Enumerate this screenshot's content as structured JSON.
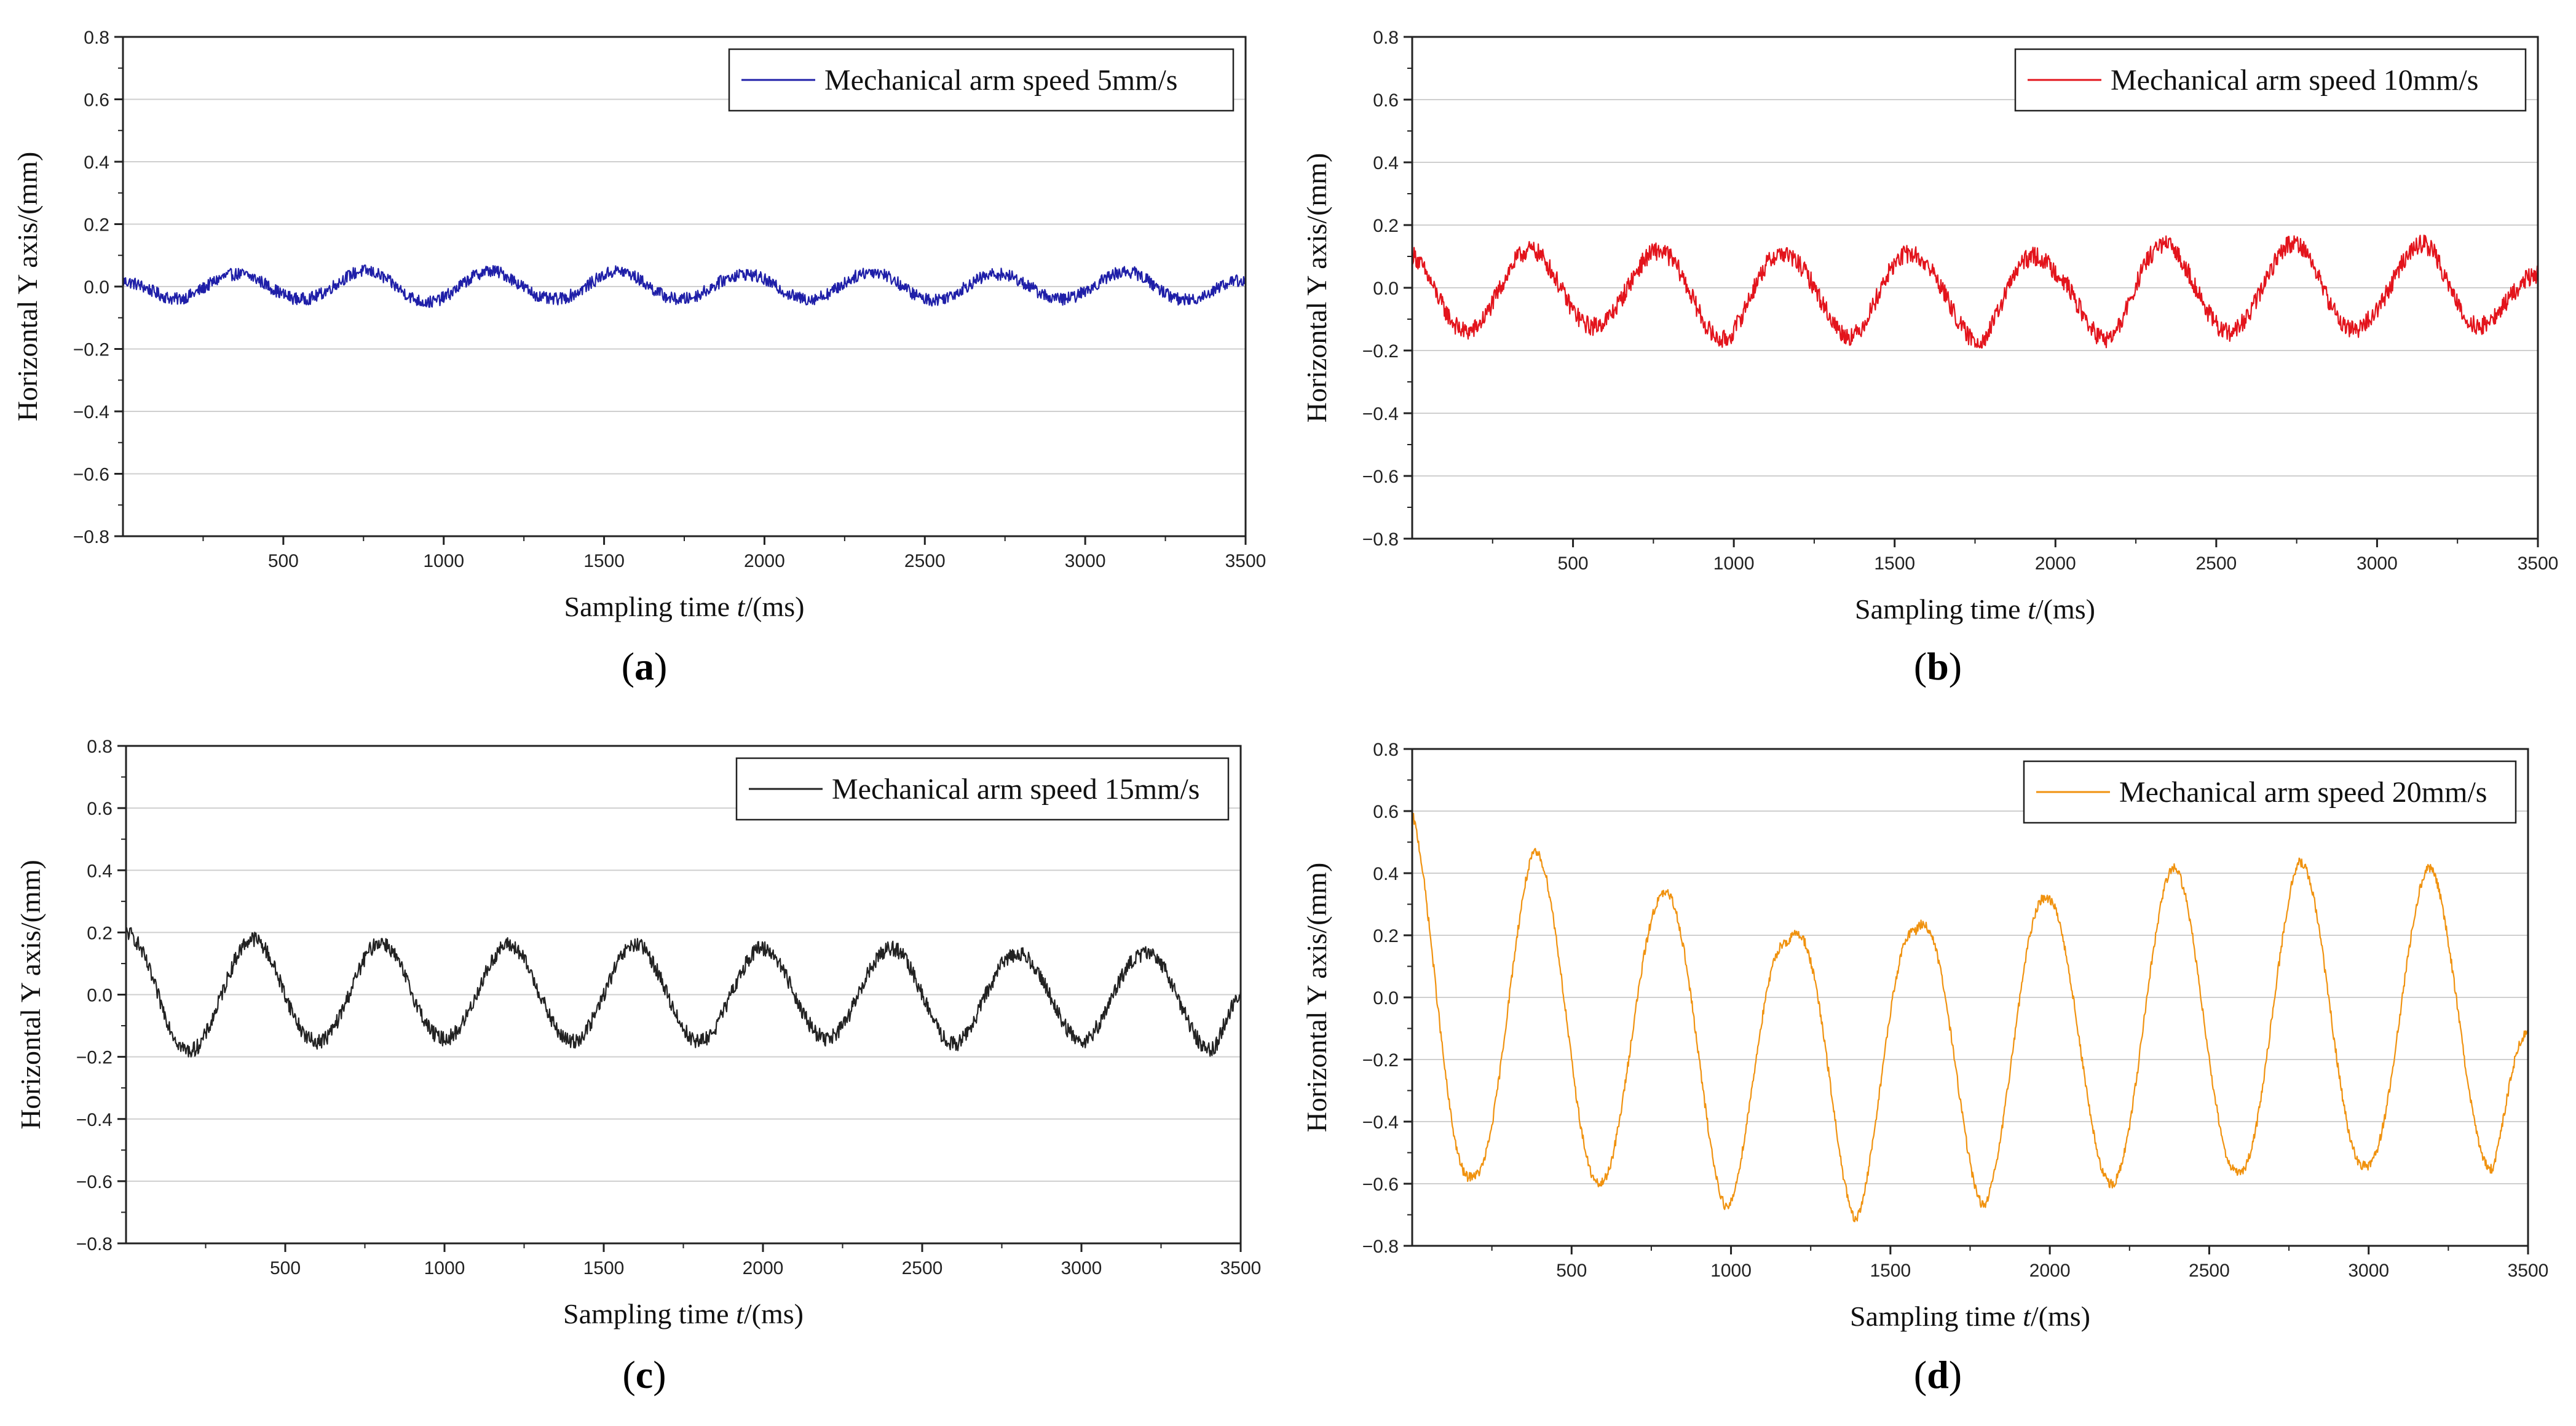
{
  "figure": {
    "panel_labels": [
      "a",
      "b",
      "c",
      "d"
    ]
  },
  "chart_data": [
    {
      "type": "line",
      "xlabel_prefix": "Sampling time ",
      "xlabel_var": "t",
      "xlabel_suffix": "/(ms)",
      "ylabel": "Horizontal Y axis/(mm)",
      "xlim": [
        0,
        3500
      ],
      "ylim": [
        -0.8,
        0.8
      ],
      "xticks": [
        500,
        1000,
        1500,
        2000,
        2500,
        3000,
        3500
      ],
      "xtick_labels": [
        "500",
        "1000",
        "1500",
        "2000",
        "2500",
        "3000",
        "3500"
      ],
      "yticks": [
        0.8,
        0.6,
        0.4,
        0.2,
        0.0,
        -0.2,
        -0.4,
        -0.6,
        -0.8
      ],
      "ytick_labels": [
        "0.8",
        "0.6",
        "0.4",
        "0.2",
        "0.0",
        "−0.2",
        "−0.4",
        "−0.6",
        "−0.8"
      ],
      "grid": true,
      "legend_position": "top-right",
      "series": [
        {
          "name": "Mechanical arm speed 5mm/s",
          "color": "#1f1fa8",
          "period_ms": 395,
          "amplitude_mm": 0.035,
          "offset_mm": 0.0,
          "phase_ms": 160,
          "noise_mm": 0.02,
          "x": [
            0,
            160,
            360,
            560,
            750,
            950,
            1150,
            1360,
            1550,
            1750,
            1970,
            2170,
            2380,
            2570,
            2770,
            2970,
            3170,
            3380,
            3500
          ],
          "y": [
            0.02,
            -0.04,
            0.04,
            -0.04,
            0.05,
            -0.05,
            0.05,
            -0.04,
            0.05,
            -0.04,
            0.04,
            -0.04,
            0.05,
            -0.04,
            0.04,
            -0.04,
            0.05,
            -0.04,
            0.02
          ]
        }
      ]
    },
    {
      "type": "line",
      "xlabel_prefix": "Sampling time ",
      "xlabel_var": "t",
      "xlabel_suffix": "/(ms)",
      "ylabel": "Horizontal Y axis/(mm)",
      "xlim": [
        0,
        3500
      ],
      "ylim": [
        -0.8,
        0.8
      ],
      "xticks": [
        500,
        1000,
        1500,
        2000,
        2500,
        3000,
        3500
      ],
      "xtick_labels": [
        "500",
        "1000",
        "1500",
        "2000",
        "2500",
        "3000",
        "3500"
      ],
      "yticks": [
        0.8,
        0.6,
        0.4,
        0.2,
        0.0,
        -0.2,
        -0.4,
        -0.6,
        -0.8
      ],
      "ytick_labels": [
        "0.8",
        "0.6",
        "0.4",
        "0.2",
        "0.0",
        "−0.2",
        "−0.4",
        "−0.6",
        "−0.8"
      ],
      "grid": true,
      "legend_position": "top-right",
      "series": [
        {
          "name": "Mechanical arm speed 10mm/s",
          "color": "#e3141c",
          "period_ms": 395,
          "amplitude_mm": 0.125,
          "offset_mm": -0.01,
          "phase_ms": 170,
          "noise_mm": 0.03,
          "x": [
            0,
            180,
            390,
            590,
            790,
            990,
            1190,
            1390,
            1590,
            1790,
            1990,
            2190,
            2380,
            2580,
            2780,
            2980,
            3180,
            3390,
            3500
          ],
          "y": [
            0.12,
            -0.14,
            0.12,
            -0.12,
            0.12,
            -0.17,
            0.1,
            -0.16,
            0.1,
            -0.18,
            0.08,
            -0.18,
            0.13,
            -0.14,
            0.15,
            -0.12,
            0.15,
            -0.1,
            0.05
          ]
        }
      ]
    },
    {
      "type": "line",
      "xlabel_prefix": "Sampling time ",
      "xlabel_var": "t",
      "xlabel_suffix": "/(ms)",
      "ylabel": "Horizontal Y axis/(mm)",
      "xlim": [
        0,
        3500
      ],
      "ylim": [
        -0.8,
        0.8
      ],
      "xticks": [
        500,
        1000,
        1500,
        2000,
        2500,
        3000,
        3500
      ],
      "xtick_labels": [
        "500",
        "1000",
        "1500",
        "2000",
        "2500",
        "3000",
        "3500"
      ],
      "yticks": [
        0.8,
        0.6,
        0.4,
        0.2,
        0.0,
        -0.2,
        -0.4,
        -0.6,
        -0.8
      ],
      "ytick_labels": [
        "0.8",
        "0.6",
        "0.4",
        "0.2",
        "0.0",
        "−0.2",
        "−0.4",
        "−0.6",
        "−0.8"
      ],
      "grid": true,
      "legend_position": "top-right",
      "series": [
        {
          "name": "Mechanical arm speed 15mm/s",
          "color": "#222222",
          "period_ms": 400,
          "amplitude_mm": 0.17,
          "offset_mm": 0.0,
          "phase_ms": 200,
          "noise_mm": 0.025,
          "x": [
            0,
            200,
            400,
            600,
            800,
            1000,
            1200,
            1400,
            1600,
            1800,
            2000,
            2200,
            2400,
            2600,
            2800,
            3000,
            3200,
            3420,
            3500
          ],
          "y": [
            0.2,
            -0.18,
            0.18,
            -0.15,
            0.17,
            -0.14,
            0.16,
            -0.15,
            0.16,
            -0.15,
            0.15,
            -0.14,
            0.15,
            -0.16,
            0.13,
            -0.15,
            0.13,
            -0.18,
            -0.05
          ]
        }
      ]
    },
    {
      "type": "line",
      "xlabel_prefix": "Sampling time ",
      "xlabel_var": "t",
      "xlabel_suffix": "/(ms)",
      "ylabel": "Horizontal Y axis/(mm)",
      "xlim": [
        0,
        3500
      ],
      "ylim": [
        -0.8,
        0.8
      ],
      "xticks": [
        500,
        1000,
        1500,
        2000,
        2500,
        3000,
        3500
      ],
      "xtick_labels": [
        "500",
        "1000",
        "1500",
        "2000",
        "2500",
        "3000",
        "3500"
      ],
      "yticks": [
        0.8,
        0.6,
        0.4,
        0.2,
        0.0,
        -0.2,
        -0.4,
        -0.6,
        -0.8
      ],
      "ytick_labels": [
        "0.8",
        "0.6",
        "0.4",
        "0.2",
        "0.0",
        "−0.2",
        "−0.4",
        "−0.6",
        "−0.8"
      ],
      "grid": true,
      "legend_position": "top-right",
      "series": [
        {
          "name": "Mechanical arm speed 20mm/s",
          "color": "#f0920f",
          "period_ms": 400,
          "amplitude_mm": 0.45,
          "offset_mm": -0.12,
          "phase_ms": 190,
          "noise_mm": 0.015,
          "x": [
            0,
            190,
            380,
            590,
            780,
            990,
            1180,
            1390,
            1580,
            1790,
            1990,
            2190,
            2390,
            2590,
            2780,
            2990,
            3190,
            3390,
            3500
          ],
          "y": [
            0.6,
            -0.57,
            0.47,
            -0.6,
            0.33,
            -0.68,
            0.18,
            -0.72,
            0.22,
            -0.67,
            0.32,
            -0.6,
            0.42,
            -0.56,
            0.44,
            -0.54,
            0.42,
            -0.55,
            -0.1
          ]
        }
      ]
    }
  ]
}
